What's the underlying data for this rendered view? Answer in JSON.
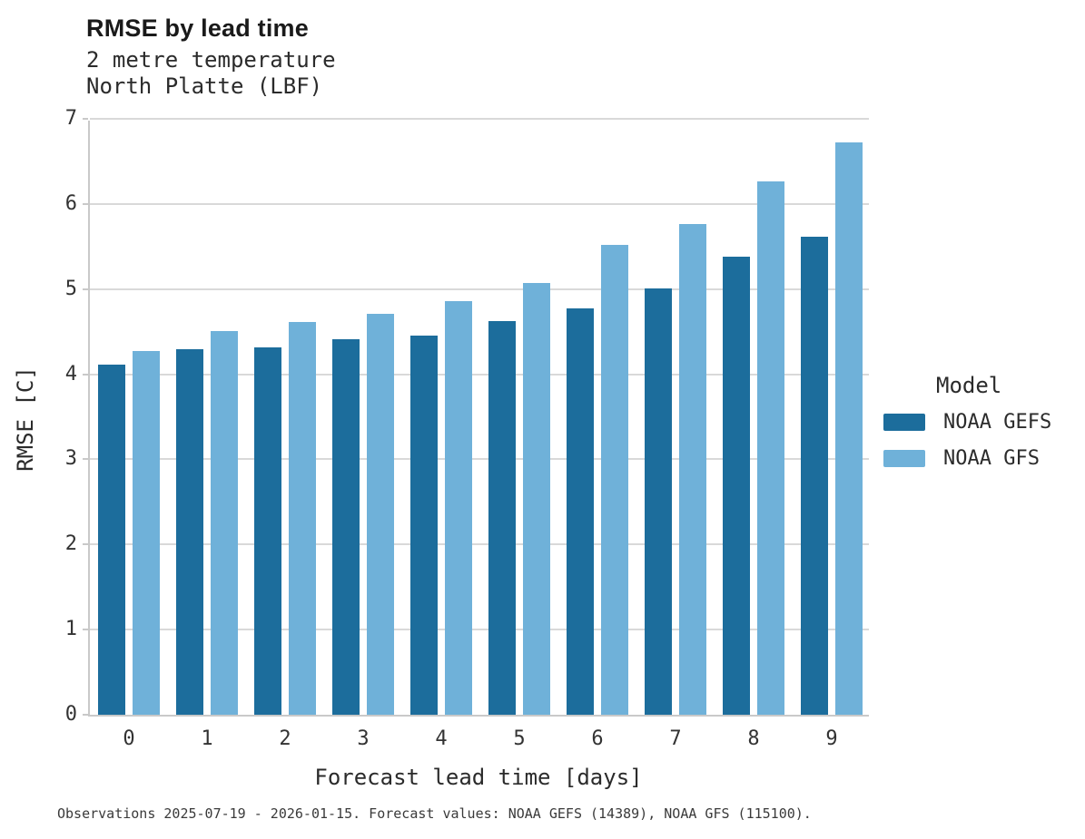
{
  "title": "RMSE by lead time",
  "subtitle_line1": "2 metre temperature",
  "subtitle_line2": "North Platte (LBF)",
  "legend": {
    "title": "Model",
    "items": [
      {
        "label": "NOAA GEFS",
        "color": "#1c6d9c"
      },
      {
        "label": "NOAA GFS",
        "color": "#6fb1d9"
      }
    ]
  },
  "caption": "Observations 2025-07-19 - 2026-01-15. Forecast values: NOAA GEFS (14389), NOAA GFS (115100).",
  "chart_data": {
    "type": "bar",
    "title": "RMSE by lead time",
    "subtitle": [
      "2 metre temperature",
      "North Platte (LBF)"
    ],
    "categories": [
      "0",
      "1",
      "2",
      "3",
      "4",
      "5",
      "6",
      "7",
      "8",
      "9"
    ],
    "series": [
      {
        "name": "NOAA GEFS",
        "color": "#1c6d9c",
        "values": [
          4.11,
          4.29,
          4.31,
          4.41,
          4.45,
          4.62,
          4.77,
          5.01,
          5.38,
          5.61
        ]
      },
      {
        "name": "NOAA GFS",
        "color": "#6fb1d9",
        "values": [
          4.27,
          4.51,
          4.61,
          4.71,
          4.86,
          5.07,
          5.52,
          5.76,
          6.26,
          6.72
        ]
      }
    ],
    "xlabel": "Forecast lead time [days]",
    "ylabel": "RMSE [C]",
    "ylim": [
      0,
      7
    ],
    "yticks": [
      0,
      1,
      2,
      3,
      4,
      5,
      6,
      7
    ],
    "grid": true,
    "legend_position": "right",
    "bar_baseline_color": "#c9c9c9",
    "gridline_color": "#d9d9d9"
  }
}
